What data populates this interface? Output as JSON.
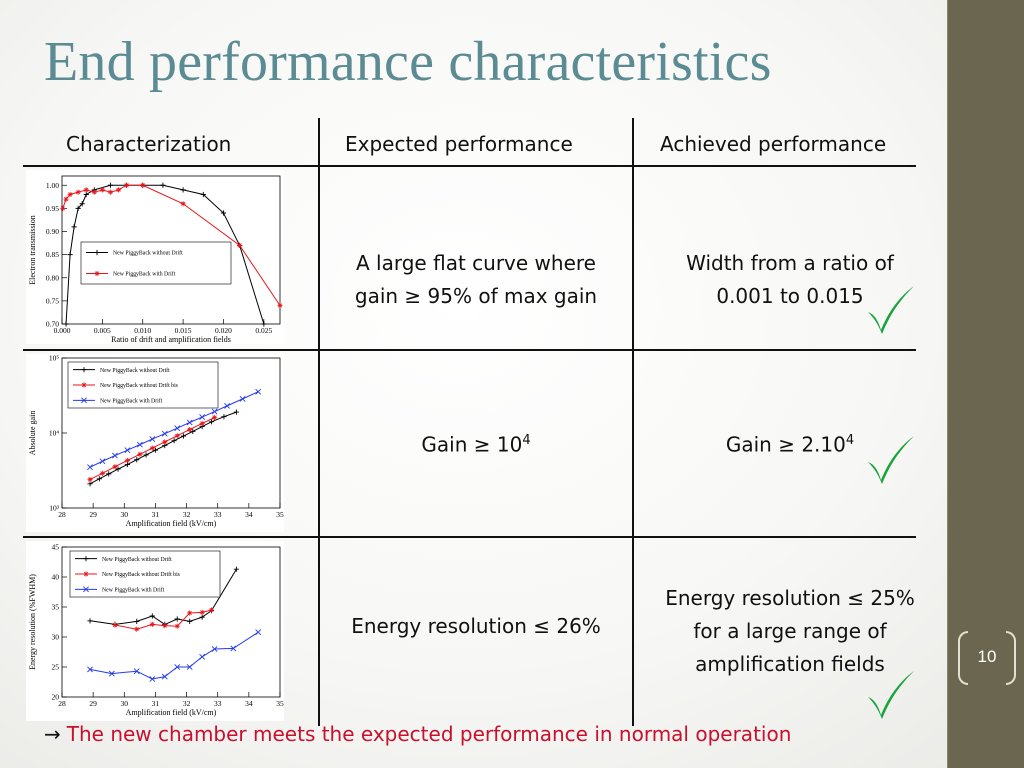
{
  "slide": {
    "title": "End performance characteristics",
    "page_number": "10",
    "accent_color": "#5b8c93",
    "sidebar_color": "#6b6650",
    "check_color": "#1aa33a"
  },
  "table": {
    "headers": [
      "Characterization",
      "Expected performance",
      "Achieved performance"
    ],
    "rows": [
      {
        "expected": [
          "A large flat curve where",
          "gain ≥ 95% of max gain"
        ],
        "achieved": [
          "Width from a ratio of",
          "0.001 to 0.015"
        ]
      },
      {
        "expected_base": "Gain ≥ 10",
        "expected_sup": "4",
        "achieved_base": "Gain ≥ 2.10",
        "achieved_sup": "4"
      },
      {
        "expected": [
          "Energy resolution ≤ 26%"
        ],
        "achieved": [
          "Energy resolution ≤ 25%",
          "for a large range of",
          "amplification fields"
        ]
      }
    ]
  },
  "footer": {
    "arrow": "→",
    "text": "The new chamber meets the expected performance in normal operation"
  },
  "chart_data": [
    {
      "type": "line",
      "xlabel": "Ratio of drift and amplification fields",
      "ylabel": "Electron transmission",
      "xlim": [
        0,
        0.027
      ],
      "ylim": [
        0.7,
        1.02
      ],
      "xticks": [
        0.0,
        0.005,
        0.01,
        0.015,
        0.02,
        0.025
      ],
      "xtick_labels": [
        "0.000",
        "0.005",
        "0.010",
        "0.015",
        "0.020",
        "0.025"
      ],
      "yticks": [
        0.7,
        0.75,
        0.8,
        0.85,
        0.9,
        0.95,
        1.0
      ],
      "ytick_labels": [
        "0.70",
        "0.75",
        "0.80",
        "0.85",
        "0.90",
        "0.95",
        "1.00"
      ],
      "legend_position": "center",
      "series": [
        {
          "name": "New PiggyBack without Drift",
          "color": "#000000",
          "marker": "plus",
          "x": [
            0.0005,
            0.001,
            0.0015,
            0.002,
            0.0025,
            0.003,
            0.004,
            0.006,
            0.008,
            0.01,
            0.0125,
            0.015,
            0.0175,
            0.02,
            0.022,
            0.025
          ],
          "y": [
            0.7,
            0.85,
            0.91,
            0.95,
            0.96,
            0.98,
            0.99,
            1.0,
            1.0,
            1.0,
            1.0,
            0.99,
            0.98,
            0.94,
            0.87,
            0.69
          ]
        },
        {
          "name": "New PiggyBack with Drift",
          "color": "#e8141b",
          "marker": "star",
          "x": [
            0.0001,
            0.0005,
            0.001,
            0.002,
            0.003,
            0.004,
            0.005,
            0.006,
            0.007,
            0.008,
            0.01,
            0.015,
            0.022,
            0.027
          ],
          "y": [
            0.95,
            0.97,
            0.98,
            0.985,
            0.99,
            0.985,
            0.99,
            0.985,
            0.99,
            1.0,
            1.0,
            0.96,
            0.87,
            0.74
          ]
        }
      ]
    },
    {
      "type": "line",
      "xlabel": "Amplification field (kV/cm)",
      "ylabel": "Absolute gain",
      "xlim": [
        28,
        35
      ],
      "ylim": [
        1000,
        100000
      ],
      "yscale": "log",
      "xticks": [
        28,
        29,
        30,
        31,
        32,
        33,
        34,
        35
      ],
      "xtick_labels": [
        "28",
        "29",
        "30",
        "31",
        "32",
        "33",
        "34",
        "35"
      ],
      "yticks": [
        1000,
        10000,
        100000
      ],
      "ytick_labels": [
        "10³",
        "10⁴",
        "10⁵"
      ],
      "legend_position": "top-left",
      "series": [
        {
          "name": "New PiggyBack without Drift",
          "color": "#000000",
          "marker": "plus",
          "x": [
            28.9,
            29.2,
            29.5,
            29.8,
            30.1,
            30.4,
            30.7,
            31.0,
            31.3,
            31.6,
            31.9,
            32.2,
            32.5,
            32.8,
            33.2,
            33.6
          ],
          "y": [
            2100,
            2450,
            2850,
            3300,
            3800,
            4400,
            5100,
            5900,
            6800,
            7900,
            9100,
            10500,
            12200,
            14100,
            16500,
            19000
          ]
        },
        {
          "name": "New PiggyBack without Drift bis",
          "color": "#e8141b",
          "marker": "star",
          "x": [
            28.9,
            29.3,
            29.7,
            30.1,
            30.5,
            30.9,
            31.3,
            31.7,
            32.1,
            32.5,
            32.9
          ],
          "y": [
            2400,
            2900,
            3550,
            4300,
            5200,
            6300,
            7600,
            9200,
            11100,
            13400,
            16100
          ]
        },
        {
          "name": "New PiggyBack with Drift",
          "color": "#2238f0",
          "marker": "x",
          "x": [
            28.9,
            29.3,
            29.7,
            30.1,
            30.5,
            30.9,
            31.3,
            31.7,
            32.1,
            32.5,
            32.9,
            33.3,
            33.8,
            34.3
          ],
          "y": [
            3500,
            4200,
            5000,
            5900,
            7000,
            8300,
            9800,
            11600,
            13800,
            16300,
            19300,
            23000,
            28500,
            35500
          ]
        }
      ]
    },
    {
      "type": "line",
      "xlabel": "Amplification field (kV/cm)",
      "ylabel": "Energy resolution (%FWHM)",
      "xlim": [
        28,
        35
      ],
      "ylim": [
        20,
        45
      ],
      "xticks": [
        28,
        29,
        30,
        31,
        32,
        33,
        34,
        35
      ],
      "xtick_labels": [
        "28",
        "29",
        "30",
        "31",
        "32",
        "33",
        "34",
        "35"
      ],
      "yticks": [
        20,
        25,
        30,
        35,
        40,
        45
      ],
      "ytick_labels": [
        "20",
        "25",
        "30",
        "35",
        "40",
        "45"
      ],
      "legend_position": "top-left",
      "series": [
        {
          "name": "New PiggyBack without Drift",
          "color": "#000000",
          "marker": "plus",
          "x": [
            28.9,
            29.7,
            30.4,
            30.9,
            31.3,
            31.7,
            32.1,
            32.5,
            32.8,
            33.6
          ],
          "y": [
            32.7,
            32.1,
            32.6,
            33.5,
            32.1,
            33.0,
            32.6,
            33.3,
            34.4,
            41.3
          ]
        },
        {
          "name": "New PiggyBack without Drift bis",
          "color": "#e8141b",
          "marker": "star",
          "x": [
            29.7,
            30.4,
            30.9,
            31.3,
            31.7,
            32.1,
            32.5,
            32.8
          ],
          "y": [
            32.0,
            31.3,
            32.1,
            31.9,
            31.8,
            34.0,
            34.1,
            34.5
          ]
        },
        {
          "name": "New PiggyBack with Drift",
          "color": "#2238f0",
          "marker": "x",
          "x": [
            28.9,
            29.6,
            30.4,
            30.9,
            31.3,
            31.7,
            32.1,
            32.5,
            32.9,
            33.5,
            34.3
          ],
          "y": [
            24.6,
            23.9,
            24.3,
            23.0,
            23.4,
            25.0,
            25.0,
            26.7,
            28.0,
            28.1,
            30.8
          ]
        }
      ]
    }
  ]
}
